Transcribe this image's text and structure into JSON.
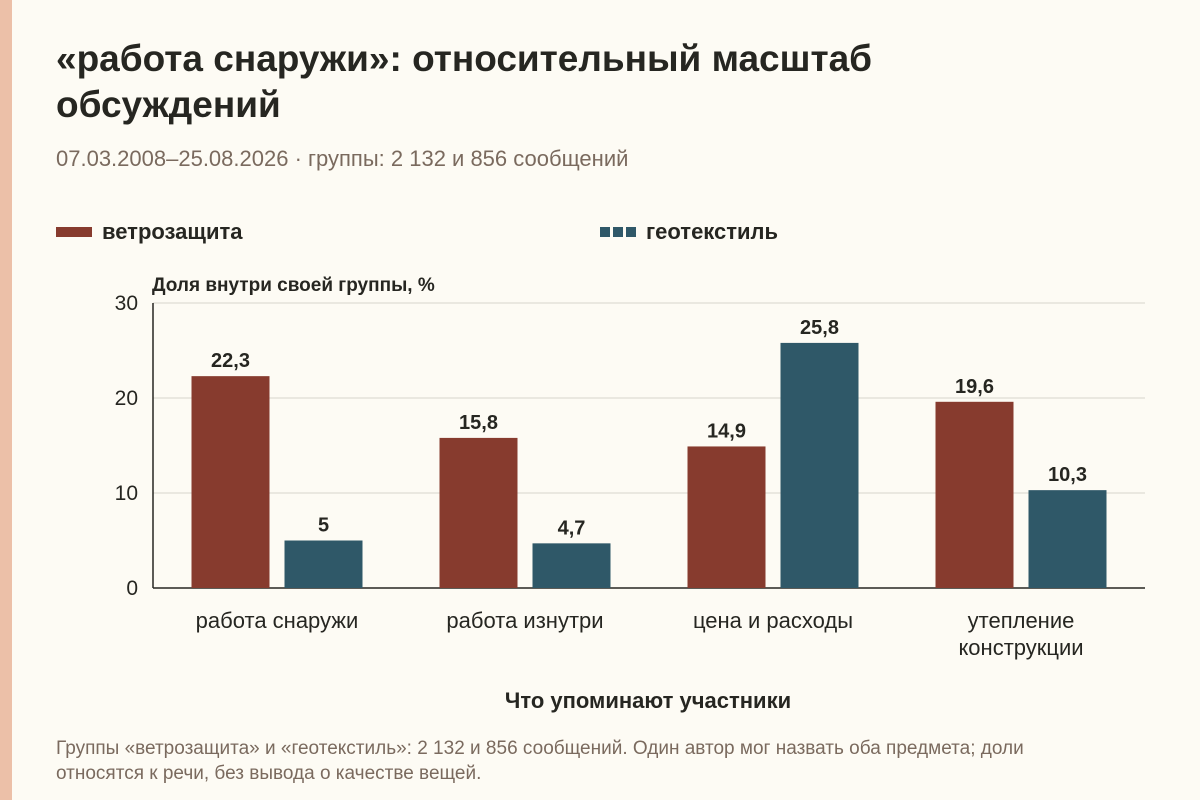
{
  "title": "«работа снаружи»: относительный масштаб обсуждений",
  "subtitle": "07.03.2008–25.08.2026 · группы: 2 132 и 856 сообщений",
  "footnote": "Группы «ветрозащита» и «геотекстиль»: 2 132 и 856 сообщений. Один автор мог назвать оба предмета; доли относятся к речи, без вывода о качестве вещей.",
  "colors": {
    "background": "#fdfbf4",
    "accent": "#ecc0a8",
    "series_a": "#873b2e",
    "series_b": "#2f5868",
    "text": "#262621",
    "muted": "#7a6a5e"
  },
  "chart_data": {
    "type": "bar",
    "ylabel": "Доля внутри своей группы, %",
    "xlabel": "Что упоминают участники",
    "ylim": [
      0,
      30
    ],
    "yticks": [
      0,
      10,
      20,
      30
    ],
    "grid": true,
    "legend_position": "top",
    "categories": [
      [
        "работа снаружи"
      ],
      [
        "работа изнутри"
      ],
      [
        "цена и расходы"
      ],
      [
        "утепление",
        "конструкции"
      ]
    ],
    "series": [
      {
        "name": "ветрозащита",
        "color": "#873b2e",
        "values": [
          22.3,
          15.8,
          14.9,
          19.6
        ],
        "labels": [
          "22,3",
          "15,8",
          "14,9",
          "19,6"
        ]
      },
      {
        "name": "геотекстиль",
        "color": "#2f5868",
        "values": [
          5,
          4.7,
          25.8,
          10.3
        ],
        "labels": [
          "5",
          "4,7",
          "25,8",
          "10,3"
        ]
      }
    ]
  }
}
